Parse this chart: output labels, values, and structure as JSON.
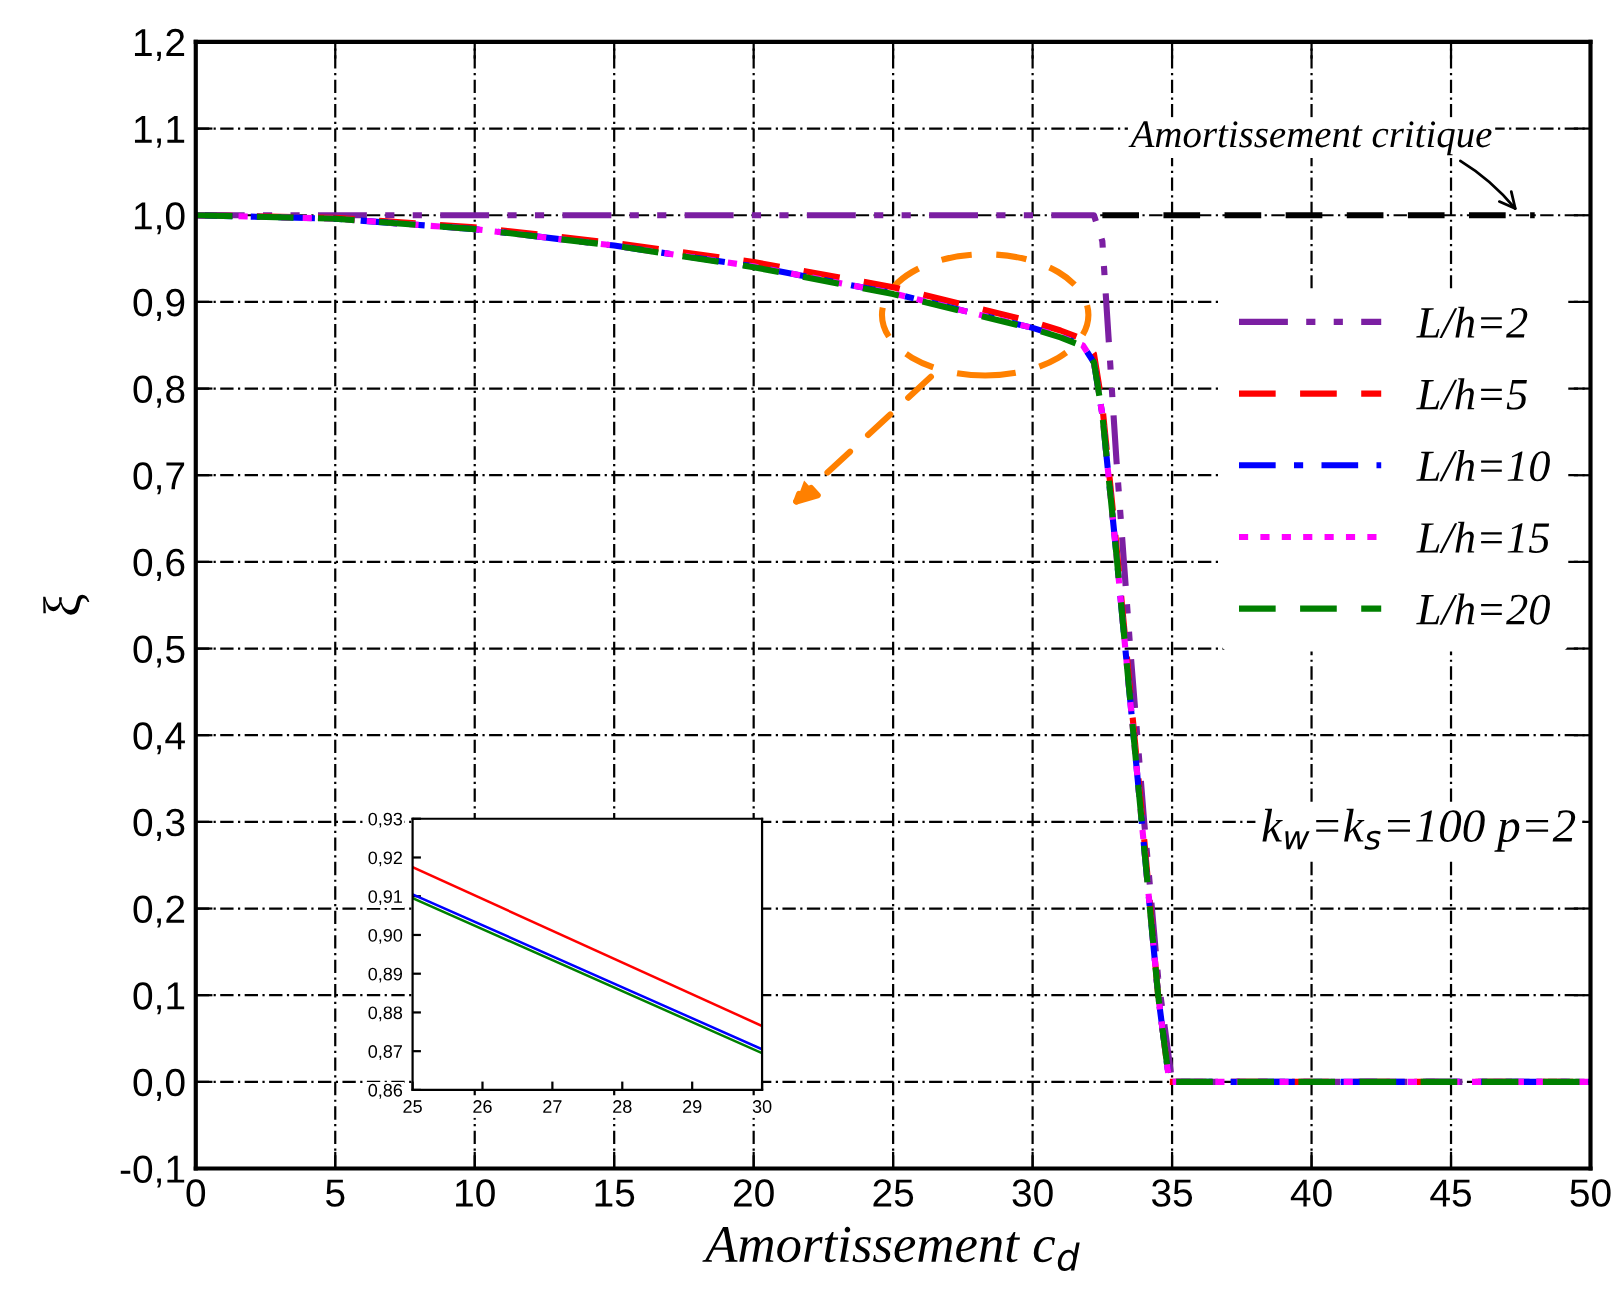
{
  "chart_data": [
    {
      "type": "line",
      "xlabel": "Amortissement c$_{d}$",
      "ylabel": "ξ",
      "xlim": [
        0,
        50
      ],
      "xticks": [
        0,
        5,
        10,
        15,
        20,
        25,
        30,
        35,
        40,
        45,
        50
      ],
      "ylim": [
        -0.1,
        1.2
      ],
      "yticks": [
        {
          "value": -0.1,
          "label": "-0,1"
        },
        {
          "value": 0,
          "label": "0,0"
        },
        {
          "value": 0.1,
          "label": "0,1"
        },
        {
          "value": 0.2,
          "label": "0,2"
        },
        {
          "value": 0.3,
          "label": "0,3"
        },
        {
          "value": 0.4,
          "label": "0,4"
        },
        {
          "value": 0.5,
          "label": "0,5"
        },
        {
          "value": 0.6,
          "label": "0,6"
        },
        {
          "value": 0.7,
          "label": "0,7"
        },
        {
          "value": 0.8,
          "label": "0,8"
        },
        {
          "value": 0.9,
          "label": "0,9"
        },
        {
          "value": 1.0,
          "label": "1,0"
        },
        {
          "value": 1.1,
          "label": "1,1"
        },
        {
          "value": 1.2,
          "label": "1,2"
        }
      ],
      "grid": true,
      "legend": "right",
      "series": [
        {
          "name": "L/h=2",
          "color": "#7b1fa2",
          "line_style": "dashdotdot",
          "x": [
            0,
            10,
            20,
            30,
            32.2,
            32.5,
            33,
            33.5,
            34,
            34.5,
            35,
            40,
            50
          ],
          "values": [
            1.0,
            1.0,
            1.0,
            1.0,
            1.0,
            0.97,
            0.72,
            0.5,
            0.3,
            0.12,
            0.0,
            0.0,
            0.0
          ]
        },
        {
          "name": "L/h=5",
          "color": "#ff0000",
          "line_style": "dashed",
          "x": [
            0,
            5,
            10,
            15,
            20,
            25,
            30,
            31,
            31.8,
            32.2,
            32.5,
            33,
            33.5,
            34,
            34.5,
            34.9,
            40,
            50
          ],
          "values": [
            1.0,
            0.997,
            0.986,
            0.968,
            0.946,
            0.917,
            0.877,
            0.867,
            0.857,
            0.84,
            0.78,
            0.62,
            0.45,
            0.28,
            0.1,
            0.0,
            0.0,
            0.0
          ]
        },
        {
          "name": "L/h=10",
          "color": "#0000ff",
          "line_style": "dashdot",
          "x": [
            0,
            5,
            10,
            15,
            20,
            25,
            30,
            31,
            31.8,
            32.2,
            32.5,
            33,
            33.5,
            34,
            34.5,
            34.9,
            40,
            50
          ],
          "values": [
            1.0,
            0.996,
            0.984,
            0.965,
            0.941,
            0.91,
            0.87,
            0.86,
            0.85,
            0.83,
            0.77,
            0.61,
            0.44,
            0.27,
            0.1,
            0.0,
            0.0,
            0.0
          ]
        },
        {
          "name": "L/h=15",
          "color": "#ff00ff",
          "line_style": "dotted",
          "x": [
            0,
            5,
            10,
            15,
            20,
            25,
            30,
            31,
            31.8,
            32.2,
            32.5,
            33,
            33.5,
            34,
            34.5,
            34.9,
            40,
            50
          ],
          "values": [
            1.0,
            0.996,
            0.984,
            0.965,
            0.941,
            0.91,
            0.87,
            0.86,
            0.85,
            0.83,
            0.77,
            0.61,
            0.44,
            0.27,
            0.1,
            0.0,
            0.0,
            0.0
          ]
        },
        {
          "name": "L/h=20",
          "color": "#008000",
          "line_style": "dashed",
          "x": [
            0,
            5,
            10,
            15,
            20,
            25,
            30,
            31,
            31.8,
            32.2,
            32.5,
            33,
            33.5,
            34,
            34.5,
            34.9,
            40,
            50
          ],
          "values": [
            1.0,
            0.996,
            0.984,
            0.965,
            0.94,
            0.909,
            0.869,
            0.859,
            0.849,
            0.83,
            0.77,
            0.61,
            0.44,
            0.27,
            0.1,
            0.0,
            0.0,
            0.0
          ]
        },
        {
          "color": "#000000",
          "line_style": "dashed",
          "x": [
            32.5,
            48
          ],
          "values": [
            1.0,
            1.0
          ]
        }
      ],
      "annotations": [
        {
          "text": "Amortissement critique",
          "x": 47.5,
          "y": 1.0
        },
        "k$_{w}$=k$_{s}$=100 p=2"
      ]
    },
    {
      "type": "line",
      "xlim": [
        25,
        30
      ],
      "xticks": [
        25,
        26,
        27,
        28,
        29,
        30
      ],
      "ylim": [
        0.86,
        0.93
      ],
      "yticks": [
        {
          "value": 0.86,
          "label": "0,86"
        },
        {
          "value": 0.87,
          "label": "0,87"
        },
        {
          "value": 0.88,
          "label": "0,88"
        },
        {
          "value": 0.89,
          "label": "0,89"
        },
        {
          "value": 0.9,
          "label": "0,90"
        },
        {
          "value": 0.91,
          "label": "0,91"
        },
        {
          "value": 0.92,
          "label": "0,92"
        },
        {
          "value": 0.93,
          "label": "0,93"
        }
      ],
      "series": [
        {
          "color": "#ff0000",
          "line_style": "solid",
          "x": [
            25,
            30
          ],
          "values": [
            0.9175,
            0.8765
          ]
        },
        {
          "color": "#0000ff",
          "line_style": "solid",
          "x": [
            25,
            30
          ],
          "values": [
            0.9105,
            0.8705
          ]
        },
        {
          "color": "#008000",
          "line_style": "solid",
          "x": [
            25,
            30
          ],
          "values": [
            0.9095,
            0.8695
          ]
        }
      ]
    }
  ]
}
